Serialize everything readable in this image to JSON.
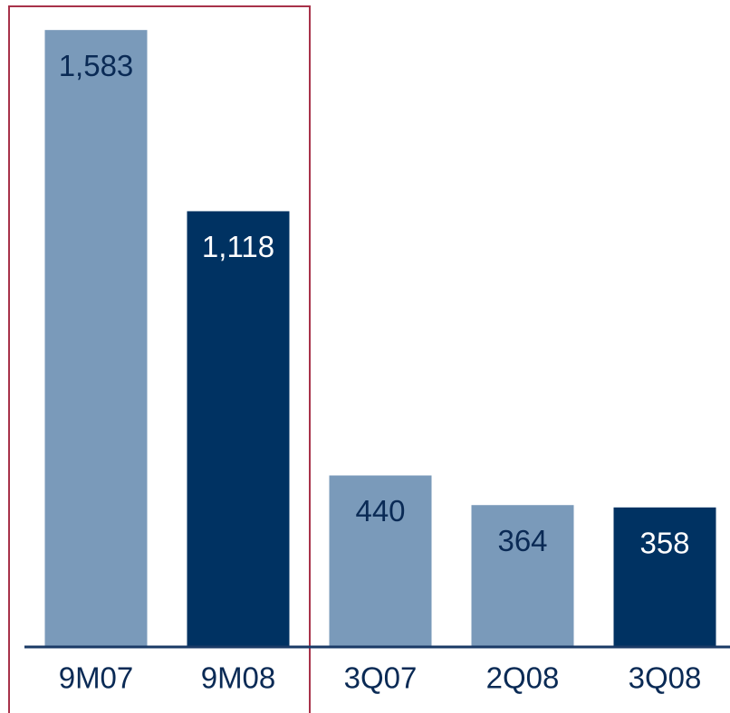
{
  "chart_data": {
    "type": "bar",
    "categories": [
      "9M07",
      "9M08",
      "3Q07",
      "2Q08",
      "3Q08"
    ],
    "values": [
      1583,
      1118,
      440,
      364,
      358
    ],
    "value_labels": [
      "1,583",
      "1,118",
      "440",
      "364",
      "358"
    ],
    "colors": [
      "#7a9aba",
      "#003262",
      "#7a9aba",
      "#7a9aba",
      "#003262"
    ],
    "ylim": [
      0,
      1660
    ]
  }
}
